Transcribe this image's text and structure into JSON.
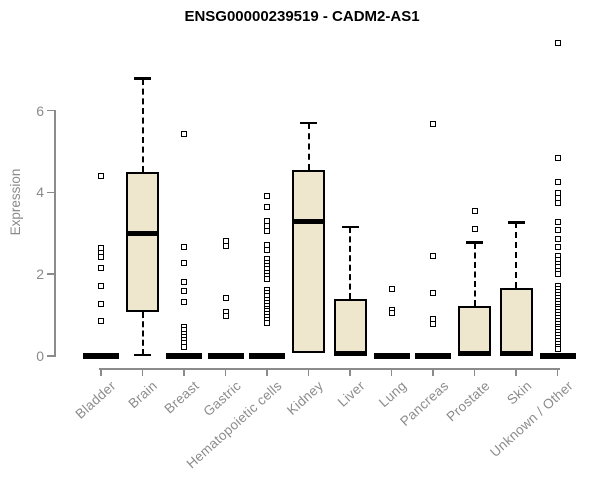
{
  "header": {
    "title": "ENSG00000239519 - CADM2-AS1"
  },
  "axes": {
    "y_label": "Expression",
    "y_tick_labels": [
      "0",
      "2",
      "4",
      "6"
    ]
  },
  "colors": {
    "box_fill": "#eee7ce",
    "box_border": "#000000",
    "axis_gray": "#8b8b8b",
    "title_color": "#000000",
    "background": "#ffffff"
  },
  "chart_data": {
    "type": "boxplot",
    "title": "ENSG00000239519 - CADM2-AS1",
    "xlabel": "",
    "ylabel": "Expression",
    "ylim": [
      0,
      6
    ],
    "yticks": [
      0,
      2,
      4,
      6
    ],
    "grid": false,
    "legend": "none",
    "categories": [
      "Bladder",
      "Brain",
      "Breast",
      "Gastric",
      "Hematopoietic cells",
      "Kidney",
      "Liver",
      "Lung",
      "Pancreas",
      "Prostate",
      "Skin",
      "Unknown / Other"
    ],
    "series": [
      {
        "name": "Bladder",
        "q1": 0,
        "median": 0,
        "q3": 0,
        "whisker_low": 0,
        "whisker_high": 0,
        "outliers": [
          4.4,
          2.65,
          2.52,
          2.42,
          2.15,
          1.7,
          1.27,
          0.85
        ]
      },
      {
        "name": "Brain",
        "q1": 1.08,
        "median": 3.0,
        "q3": 4.5,
        "whisker_low": 0.02,
        "whisker_high": 6.78,
        "outliers": []
      },
      {
        "name": "Breast",
        "q1": 0,
        "median": 0,
        "q3": 0,
        "whisker_low": 0,
        "whisker_high": 0,
        "outliers": [
          5.43,
          2.67,
          2.28,
          1.8,
          1.58,
          1.33,
          0.72,
          0.63,
          0.55,
          0.47,
          0.39,
          0.31,
          0.23
        ]
      },
      {
        "name": "Gastric",
        "q1": 0,
        "median": 0,
        "q3": 0,
        "whisker_low": 0,
        "whisker_high": 0,
        "outliers": [
          2.82,
          2.7,
          1.42,
          1.08,
          0.97
        ]
      },
      {
        "name": "Hematopoietic cells",
        "q1": 0,
        "median": 0,
        "q3": 0,
        "whisker_low": 0,
        "whisker_high": 0,
        "outliers": [
          3.9,
          3.65,
          3.3,
          3.18,
          3.06,
          2.72,
          2.6,
          2.36,
          2.28,
          2.2,
          2.12,
          2.04,
          1.96,
          1.88,
          1.62,
          1.54,
          1.46,
          1.38,
          1.3,
          1.23,
          1.16,
          1.09,
          1.02,
          0.95,
          0.88,
          0.81
        ]
      },
      {
        "name": "Kidney",
        "q1": 0.07,
        "median": 3.3,
        "q3": 4.55,
        "whisker_low": 0.07,
        "whisker_high": 5.7,
        "outliers": []
      },
      {
        "name": "Liver",
        "q1": 0,
        "median": 0.05,
        "q3": 1.4,
        "whisker_low": 0,
        "whisker_high": 3.15,
        "outliers": []
      },
      {
        "name": "Lung",
        "q1": 0,
        "median": 0,
        "q3": 0,
        "whisker_low": 0,
        "whisker_high": 0,
        "outliers": [
          1.65,
          1.12,
          1.04
        ]
      },
      {
        "name": "Pancreas",
        "q1": 0,
        "median": 0,
        "q3": 0,
        "whisker_low": 0,
        "whisker_high": 0,
        "outliers": [
          5.68,
          2.45,
          1.55,
          0.9,
          0.78
        ]
      },
      {
        "name": "Prostate",
        "q1": 0,
        "median": 0.05,
        "q3": 1.23,
        "whisker_low": 0,
        "whisker_high": 2.77,
        "outliers": [
          3.55,
          3.1
        ]
      },
      {
        "name": "Skin",
        "q1": 0,
        "median": 0.05,
        "q3": 1.67,
        "whisker_low": 0,
        "whisker_high": 3.27,
        "outliers": []
      },
      {
        "name": "Unknown / Other",
        "q1": 0,
        "median": 0,
        "q3": 0,
        "whisker_low": 0,
        "whisker_high": 0,
        "outliers": [
          7.65,
          4.83,
          4.26,
          3.98,
          3.86,
          3.74,
          3.27,
          3.08,
          2.86,
          2.66,
          2.44,
          2.35,
          2.26,
          2.17,
          2.08,
          2.0,
          1.7,
          1.63,
          1.56,
          1.49,
          1.42,
          1.35,
          1.28,
          1.21,
          1.14,
          1.07,
          1.0,
          0.93,
          0.86,
          0.79,
          0.72,
          0.65,
          0.58,
          0.51,
          0.44,
          0.37,
          0.3,
          0.23,
          0.16
        ]
      }
    ]
  }
}
